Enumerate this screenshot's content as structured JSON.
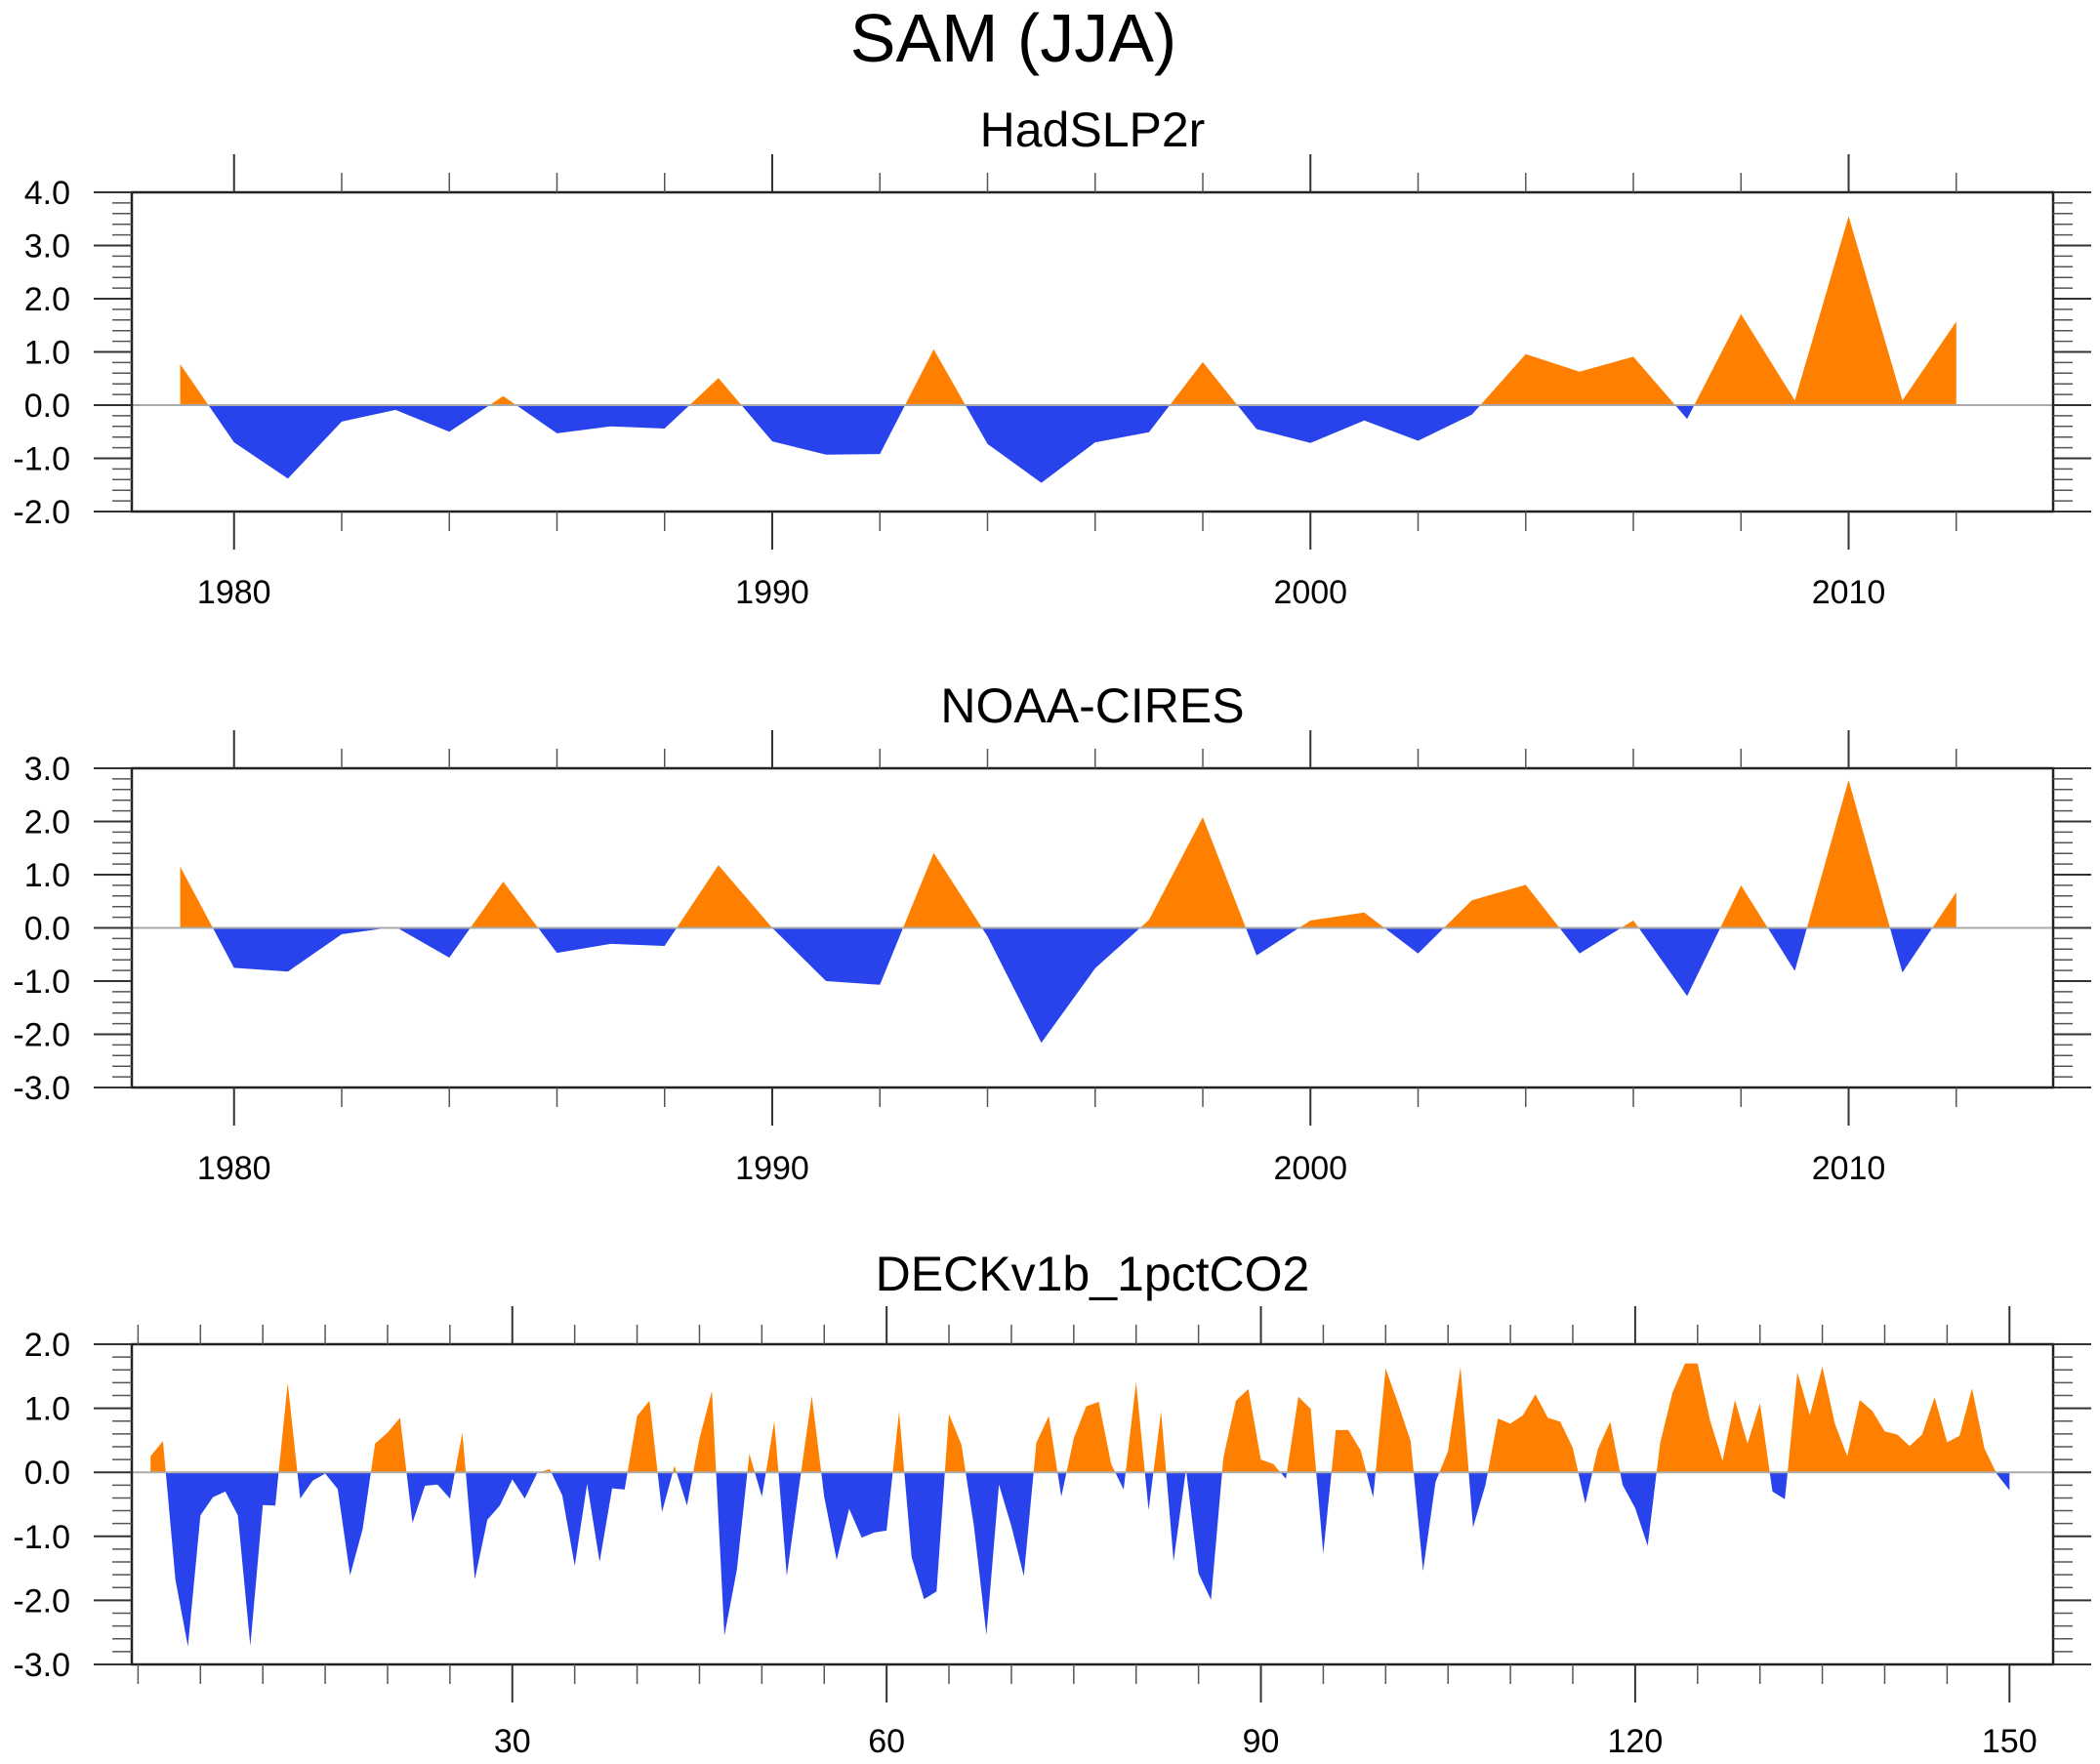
{
  "figure_title": "SAM (JJA)",
  "colors": {
    "positive": "#FF8000",
    "negative": "#2843EB",
    "zero_line": "#AAAAAA"
  },
  "chart_data": [
    {
      "type": "area",
      "title": "HadSLP2r",
      "xlabel": "",
      "ylabel": "",
      "xlim": [
        1978.5,
        1992.5
      ],
      "x_range": [
        1978.1,
        2013.8
      ],
      "ylim": [
        -2.0,
        4.0
      ],
      "yticks": [
        4.0,
        3.0,
        2.0,
        1.0,
        0.0,
        -1.0,
        -2.0
      ],
      "ytick_labels": [
        "4.0",
        "3.0",
        "2.0",
        "1.0",
        "0.0",
        "-1.0",
        "-2.0"
      ],
      "yminor_step": 0.2,
      "xticks": [
        1980,
        1990,
        2000,
        2010
      ],
      "xtick_labels": [
        "1980",
        "1990",
        "2000",
        "2010"
      ],
      "xminor_step": 2,
      "grid": false,
      "x": [
        1979,
        1980,
        1981,
        1982,
        1983,
        1984,
        1985,
        1986,
        1987,
        1988,
        1989,
        1990,
        1991,
        1992,
        1993,
        1994,
        1995,
        1996,
        1997,
        1998,
        1999,
        2000,
        2001,
        2002,
        2003,
        2004,
        2005,
        2006,
        2007,
        2008,
        2009,
        2010,
        2011,
        2012
      ],
      "values": [
        0.77,
        -0.7,
        -1.38,
        -0.31,
        -0.09,
        -0.5,
        0.17,
        -0.53,
        -0.4,
        -0.44,
        0.51,
        -0.68,
        -0.93,
        -0.92,
        1.05,
        -0.73,
        -1.46,
        -0.7,
        -0.51,
        0.81,
        -0.45,
        -0.71,
        -0.29,
        -0.67,
        -0.18,
        0.96,
        0.63,
        0.91,
        -0.26,
        1.71,
        0.09,
        3.55,
        0.09,
        1.57
      ]
    },
    {
      "type": "area",
      "title": "NOAA-CIRES",
      "xlabel": "",
      "ylabel": "",
      "x_range": [
        1978.1,
        2013.8
      ],
      "ylim": [
        -3.0,
        3.0
      ],
      "yticks": [
        3.0,
        2.0,
        1.0,
        0.0,
        -1.0,
        -2.0,
        -3.0
      ],
      "ytick_labels": [
        "3.0",
        "2.0",
        "1.0",
        "0.0",
        "-1.0",
        "-2.0",
        "-3.0"
      ],
      "yminor_step": 0.2,
      "xticks": [
        1980,
        1990,
        2000,
        2010
      ],
      "xtick_labels": [
        "1980",
        "1990",
        "2000",
        "2010"
      ],
      "xminor_step": 2,
      "grid": false,
      "x": [
        1979,
        1980,
        1981,
        1982,
        1983,
        1984,
        1985,
        1986,
        1987,
        1988,
        1989,
        1990,
        1991,
        1992,
        1993,
        1994,
        1995,
        1996,
        1997,
        1998,
        1999,
        2000,
        2001,
        2002,
        2003,
        2004,
        2005,
        2006,
        2007,
        2008,
        2009,
        2010,
        2011,
        2012
      ],
      "values": [
        1.15,
        -0.75,
        -0.82,
        -0.12,
        0.02,
        -0.56,
        0.87,
        -0.47,
        -0.3,
        -0.34,
        1.18,
        0.0,
        -1.0,
        -1.07,
        1.41,
        -0.16,
        -2.16,
        -0.76,
        0.15,
        2.08,
        -0.52,
        0.14,
        0.29,
        -0.48,
        0.52,
        0.81,
        -0.48,
        0.14,
        -1.28,
        0.8,
        -0.81,
        2.78,
        -0.84,
        0.67
      ]
    },
    {
      "type": "area",
      "title": "DECKv1b_1pctCO2",
      "xlabel": "",
      "ylabel": "",
      "x_range": [
        -0.5,
        153.5
      ],
      "ylim": [
        -3.0,
        2.0
      ],
      "yticks": [
        2.0,
        1.0,
        0.0,
        -1.0,
        -2.0,
        -3.0
      ],
      "ytick_labels": [
        "2.0",
        "1.0",
        "0.0",
        "-1.0",
        "-2.0",
        "-3.0"
      ],
      "yminor_step": 0.2,
      "xticks": [
        30,
        60,
        90,
        120,
        150
      ],
      "xtick_labels": [
        "30",
        "60",
        "90",
        "120",
        "150"
      ],
      "xminor_step": 5,
      "grid": false,
      "x_start": 1,
      "values": [
        0.25,
        0.49,
        -1.68,
        -2.72,
        -0.67,
        -0.39,
        -0.3,
        -0.67,
        -2.71,
        -0.51,
        -0.52,
        1.4,
        -0.41,
        -0.13,
        -0.02,
        -0.26,
        -1.61,
        -0.89,
        0.45,
        0.62,
        0.85,
        -0.79,
        -0.21,
        -0.19,
        -0.41,
        0.62,
        -1.67,
        -0.74,
        -0.52,
        -0.11,
        -0.41,
        -0.01,
        0.05,
        -0.36,
        -1.46,
        -0.18,
        -1.4,
        -0.25,
        -0.27,
        0.88,
        1.12,
        -0.62,
        0.1,
        -0.52,
        0.53,
        1.27,
        -2.55,
        -1.52,
        0.29,
        -0.38,
        0.8,
        -1.62,
        -0.2,
        1.19,
        -0.38,
        -1.37,
        -0.57,
        -1.02,
        -0.94,
        -0.91,
        0.95,
        -1.32,
        -1.98,
        -1.86,
        0.91,
        0.43,
        -0.84,
        -2.54,
        -0.19,
        -0.84,
        -1.62,
        0.46,
        0.88,
        -0.38,
        0.53,
        1.03,
        1.1,
        0.13,
        -0.27,
        1.41,
        -0.59,
        0.95,
        -1.39,
        0.05,
        -1.58,
        -1.99,
        0.24,
        1.12,
        1.3,
        0.2,
        0.13,
        -0.1,
        1.18,
        0.99,
        -1.27,
        0.66,
        0.66,
        0.34,
        -0.39,
        1.62,
        1.07,
        0.49,
        -1.54,
        -0.15,
        0.33,
        1.64,
        -0.86,
        -0.2,
        0.84,
        0.76,
        0.89,
        1.22,
        0.85,
        0.79,
        0.38,
        -0.49,
        0.36,
        0.79,
        -0.2,
        -0.56,
        -1.15,
        0.46,
        1.25,
        1.7,
        1.7,
        0.81,
        0.18,
        1.13,
        0.45,
        1.08,
        -0.3,
        -0.42,
        1.56,
        0.89,
        1.65,
        0.76,
        0.25,
        1.13,
        0.96,
        0.64,
        0.59,
        0.41,
        0.59,
        1.17,
        0.47,
        0.57,
        1.31,
        0.37,
        -0.03,
        -0.28
      ]
    }
  ]
}
